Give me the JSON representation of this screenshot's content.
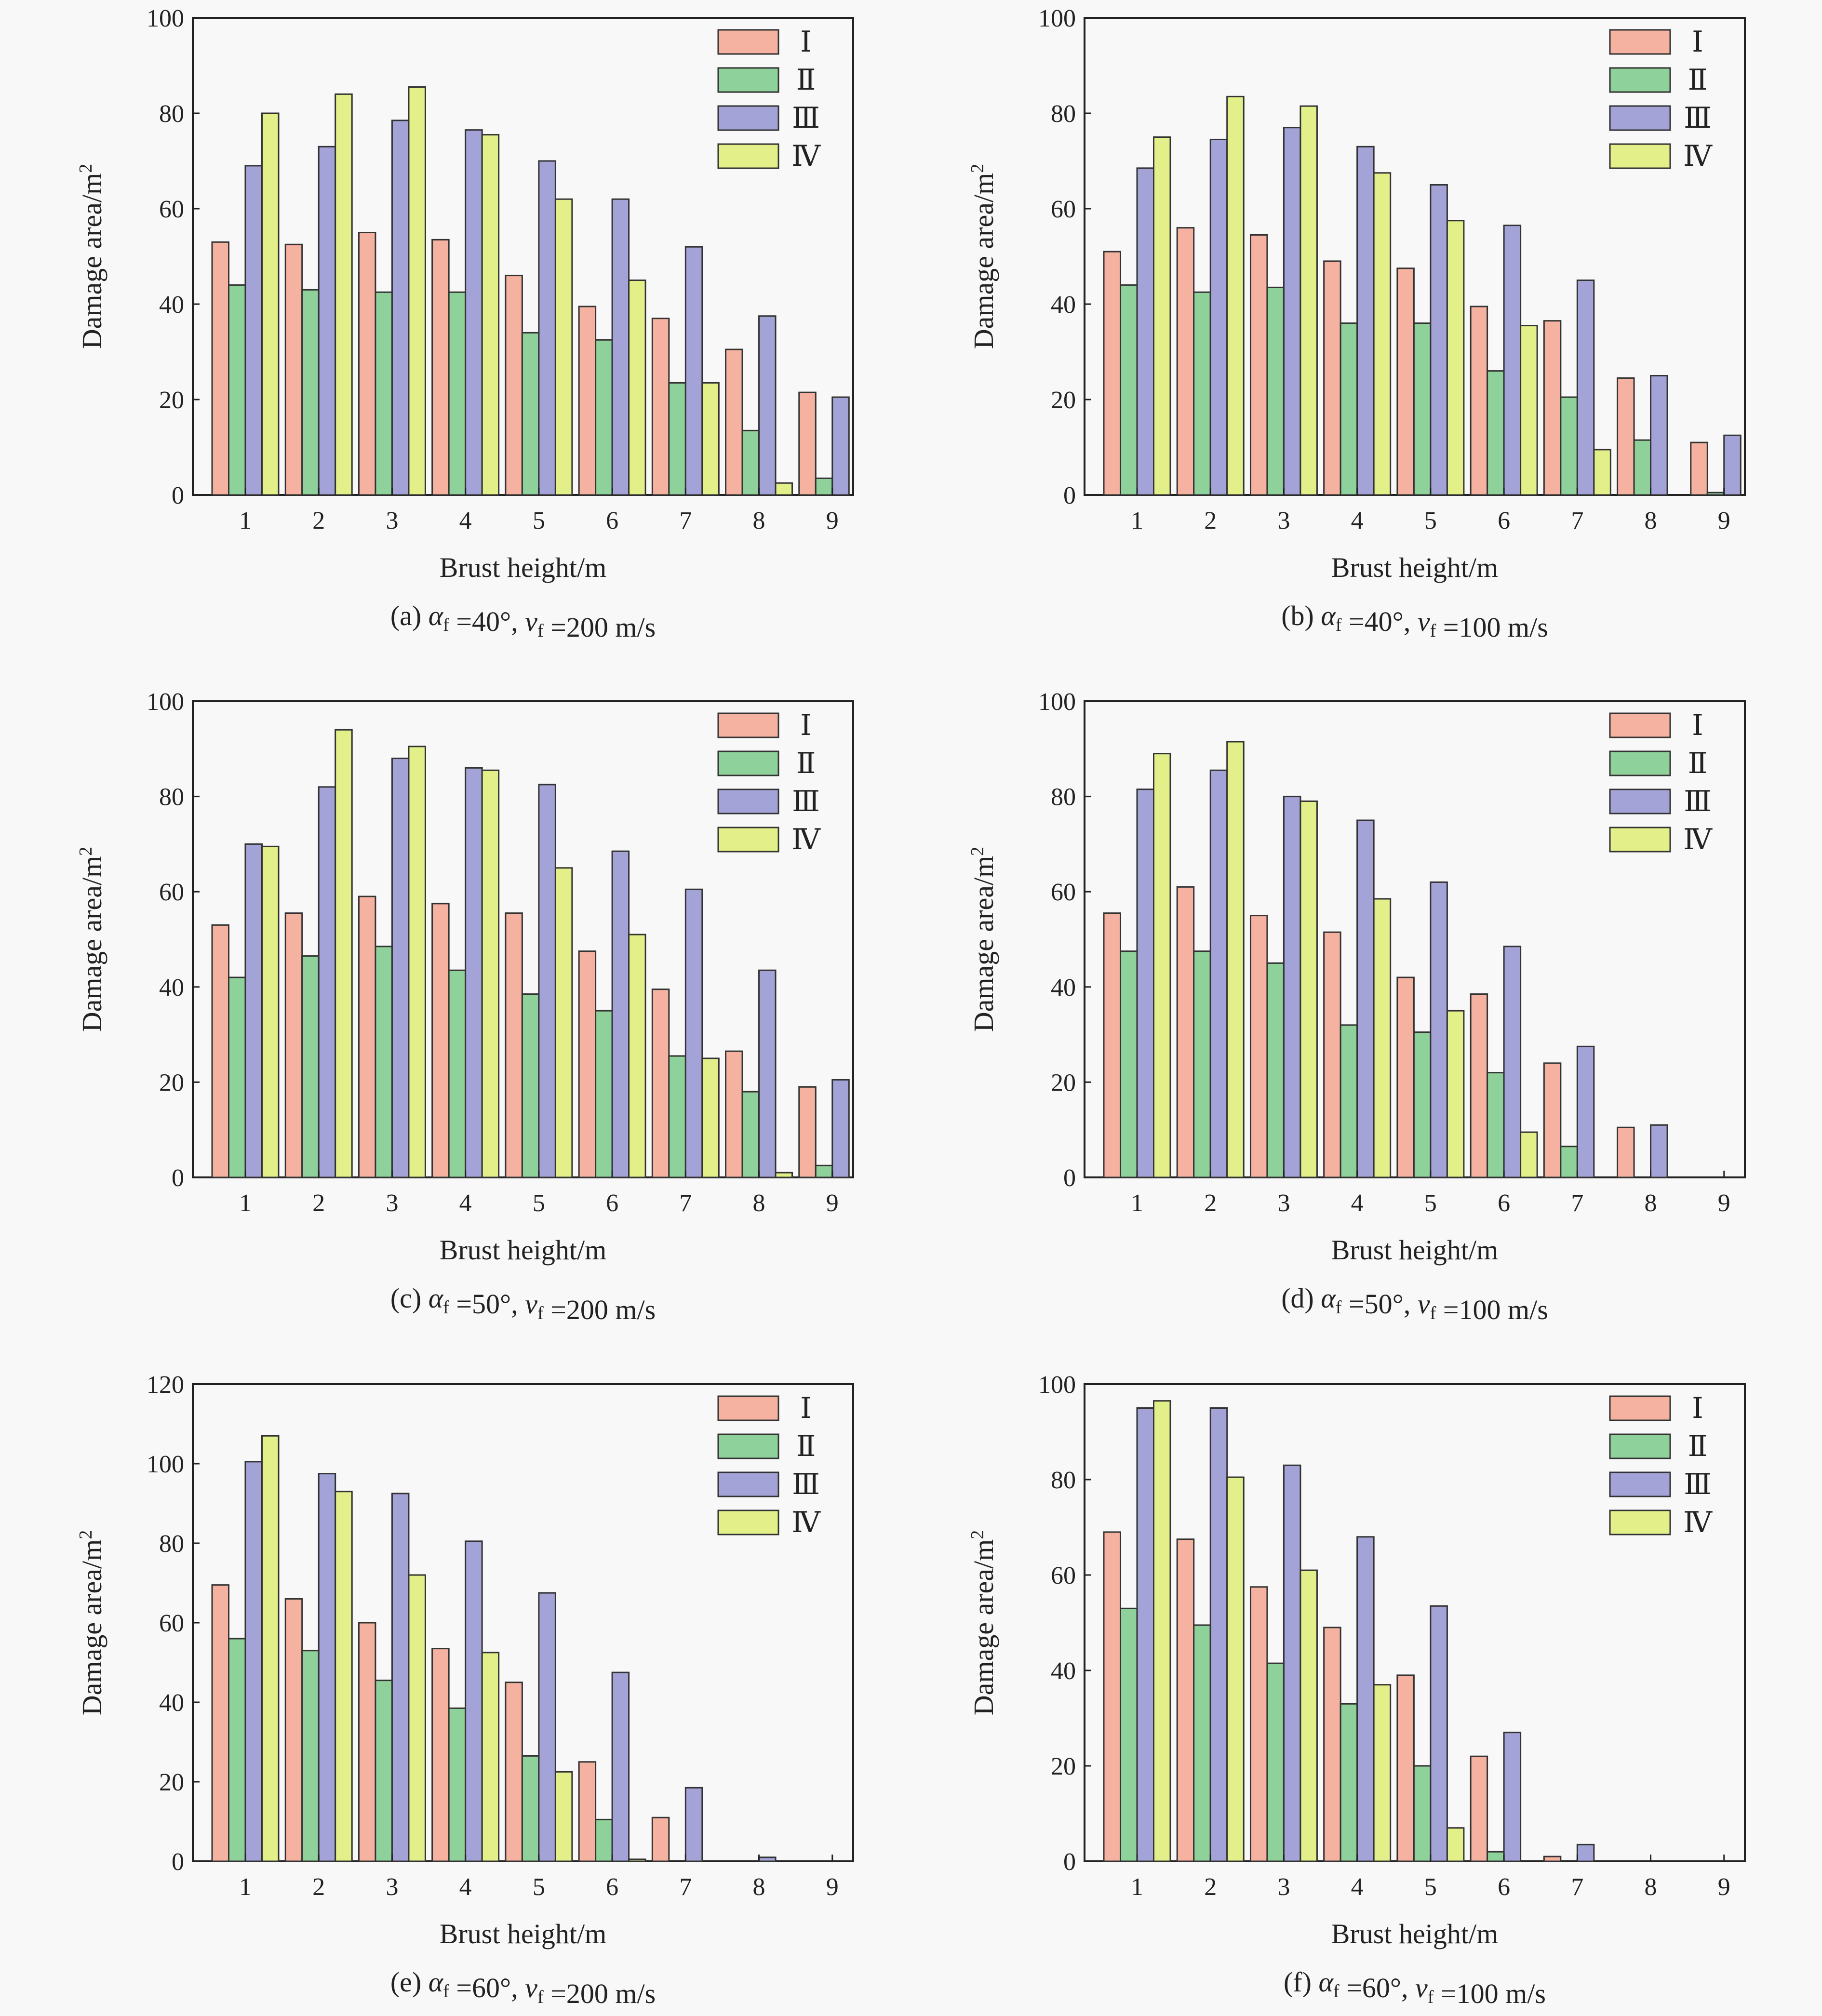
{
  "colors": {
    "I": "#f6b2a0",
    "II": "#8fd19a",
    "III": "#a3a3d8",
    "IV": "#e3f08a"
  },
  "chart_data": [
    {
      "type": "bar",
      "caption": "(a) αf =40°, vf =200 m/s",
      "xlabel": "Brust height/m",
      "ylabel": "Damage area/m²",
      "ylim": [
        0,
        100
      ],
      "yticks": [
        0,
        20,
        40,
        60,
        80,
        100
      ],
      "categories": [
        "1",
        "2",
        "3",
        "4",
        "5",
        "6",
        "7",
        "8",
        "9"
      ],
      "legend_position": "top-right",
      "series": [
        {
          "name": "Ⅰ",
          "values": [
            53,
            52.5,
            55,
            53.5,
            46,
            39.5,
            37,
            30.5,
            21.5
          ]
        },
        {
          "name": "Ⅱ",
          "values": [
            44,
            43,
            42.5,
            42.5,
            34,
            32.5,
            23.5,
            13.5,
            3.5
          ]
        },
        {
          "name": "Ⅲ",
          "values": [
            69,
            73,
            78.5,
            76.5,
            70,
            62,
            52,
            37.5,
            20.5
          ]
        },
        {
          "name": "Ⅳ",
          "values": [
            80,
            84,
            85.5,
            75.5,
            62,
            45,
            23.5,
            2.5,
            0
          ]
        }
      ]
    },
    {
      "type": "bar",
      "caption": "(b) αf =40°, vf =100 m/s",
      "xlabel": "Brust height/m",
      "ylabel": "Damage area/m²",
      "ylim": [
        0,
        100
      ],
      "yticks": [
        0,
        20,
        40,
        60,
        80,
        100
      ],
      "categories": [
        "1",
        "2",
        "3",
        "4",
        "5",
        "6",
        "7",
        "8",
        "9"
      ],
      "legend_position": "top-right",
      "series": [
        {
          "name": "Ⅰ",
          "values": [
            51,
            56,
            54.5,
            49,
            47.5,
            39.5,
            36.5,
            24.5,
            11
          ]
        },
        {
          "name": "Ⅱ",
          "values": [
            44,
            42.5,
            43.5,
            36,
            36,
            26,
            20.5,
            11.5,
            0.5
          ]
        },
        {
          "name": "Ⅲ",
          "values": [
            68.5,
            74.5,
            77,
            73,
            65,
            56.5,
            45,
            25,
            12.5
          ]
        },
        {
          "name": "Ⅳ",
          "values": [
            75,
            83.5,
            81.5,
            67.5,
            57.5,
            35.5,
            9.5,
            0,
            0
          ]
        }
      ]
    },
    {
      "type": "bar",
      "caption": "(c) αf =50°, vf =200 m/s",
      "xlabel": "Brust height/m",
      "ylabel": "Damage area/m²",
      "ylim": [
        0,
        100
      ],
      "yticks": [
        0,
        20,
        40,
        60,
        80,
        100
      ],
      "categories": [
        "1",
        "2",
        "3",
        "4",
        "5",
        "6",
        "7",
        "8",
        "9"
      ],
      "legend_position": "top-right",
      "series": [
        {
          "name": "Ⅰ",
          "values": [
            53,
            55.5,
            59,
            57.5,
            55.5,
            47.5,
            39.5,
            26.5,
            19
          ]
        },
        {
          "name": "Ⅱ",
          "values": [
            42,
            46.5,
            48.5,
            43.5,
            38.5,
            35,
            25.5,
            18,
            2.5
          ]
        },
        {
          "name": "Ⅲ",
          "values": [
            70,
            82,
            88,
            86,
            82.5,
            68.5,
            60.5,
            43.5,
            20.5
          ]
        },
        {
          "name": "Ⅳ",
          "values": [
            69.5,
            94,
            90.5,
            85.5,
            65,
            51,
            25,
            1,
            0
          ]
        }
      ]
    },
    {
      "type": "bar",
      "caption": "(d) αf =50°, vf =100 m/s",
      "xlabel": "Brust height/m",
      "ylabel": "Damage area/m²",
      "ylim": [
        0,
        100
      ],
      "yticks": [
        0,
        20,
        40,
        60,
        80,
        100
      ],
      "categories": [
        "1",
        "2",
        "3",
        "4",
        "5",
        "6",
        "7",
        "8",
        "9"
      ],
      "legend_position": "top-right",
      "series": [
        {
          "name": "Ⅰ",
          "values": [
            55.5,
            61,
            55,
            51.5,
            42,
            38.5,
            24,
            10.5,
            0
          ]
        },
        {
          "name": "Ⅱ",
          "values": [
            47.5,
            47.5,
            45,
            32,
            30.5,
            22,
            6.5,
            0,
            0
          ]
        },
        {
          "name": "Ⅲ",
          "values": [
            81.5,
            85.5,
            80,
            75,
            62,
            48.5,
            27.5,
            11,
            0
          ]
        },
        {
          "name": "Ⅳ",
          "values": [
            89,
            91.5,
            79,
            58.5,
            35,
            9.5,
            0,
            0,
            0
          ]
        }
      ]
    },
    {
      "type": "bar",
      "caption": "(e) αf =60°, vf =200 m/s",
      "xlabel": "Brust height/m",
      "ylabel": "Damage area/m²",
      "ylim": [
        0,
        120
      ],
      "yticks": [
        0,
        20,
        40,
        60,
        80,
        100,
        120
      ],
      "categories": [
        "1",
        "2",
        "3",
        "4",
        "5",
        "6",
        "7",
        "8",
        "9"
      ],
      "legend_position": "top-right",
      "series": [
        {
          "name": "Ⅰ",
          "values": [
            69.5,
            66,
            60,
            53.5,
            45,
            25,
            11,
            0,
            0
          ]
        },
        {
          "name": "Ⅱ",
          "values": [
            56,
            53,
            45.5,
            38.5,
            26.5,
            10.5,
            0,
            0,
            0
          ]
        },
        {
          "name": "Ⅲ",
          "values": [
            100.5,
            97.5,
            92.5,
            80.5,
            67.5,
            47.5,
            18.5,
            1,
            0
          ]
        },
        {
          "name": "Ⅳ",
          "values": [
            107,
            93,
            72,
            52.5,
            22.5,
            0.5,
            0,
            0,
            0
          ]
        }
      ]
    },
    {
      "type": "bar",
      "caption": "(f) αf =60°, vf =100 m/s",
      "xlabel": "Brust height/m",
      "ylabel": "Damage area/m²",
      "ylim": [
        0,
        100
      ],
      "yticks": [
        0,
        20,
        40,
        60,
        80,
        100
      ],
      "categories": [
        "1",
        "2",
        "3",
        "4",
        "5",
        "6",
        "7",
        "8",
        "9"
      ],
      "legend_position": "top-right",
      "series": [
        {
          "name": "Ⅰ",
          "values": [
            69,
            67.5,
            57.5,
            49,
            39,
            22,
            1,
            0,
            0
          ]
        },
        {
          "name": "Ⅱ",
          "values": [
            53,
            49.5,
            41.5,
            33,
            20,
            2,
            0,
            0,
            0
          ]
        },
        {
          "name": "Ⅲ",
          "values": [
            95,
            95,
            83,
            68,
            53.5,
            27,
            3.5,
            0,
            0
          ]
        },
        {
          "name": "Ⅳ",
          "values": [
            96.5,
            80.5,
            61,
            37,
            7,
            0,
            0,
            0,
            0
          ]
        }
      ]
    }
  ]
}
